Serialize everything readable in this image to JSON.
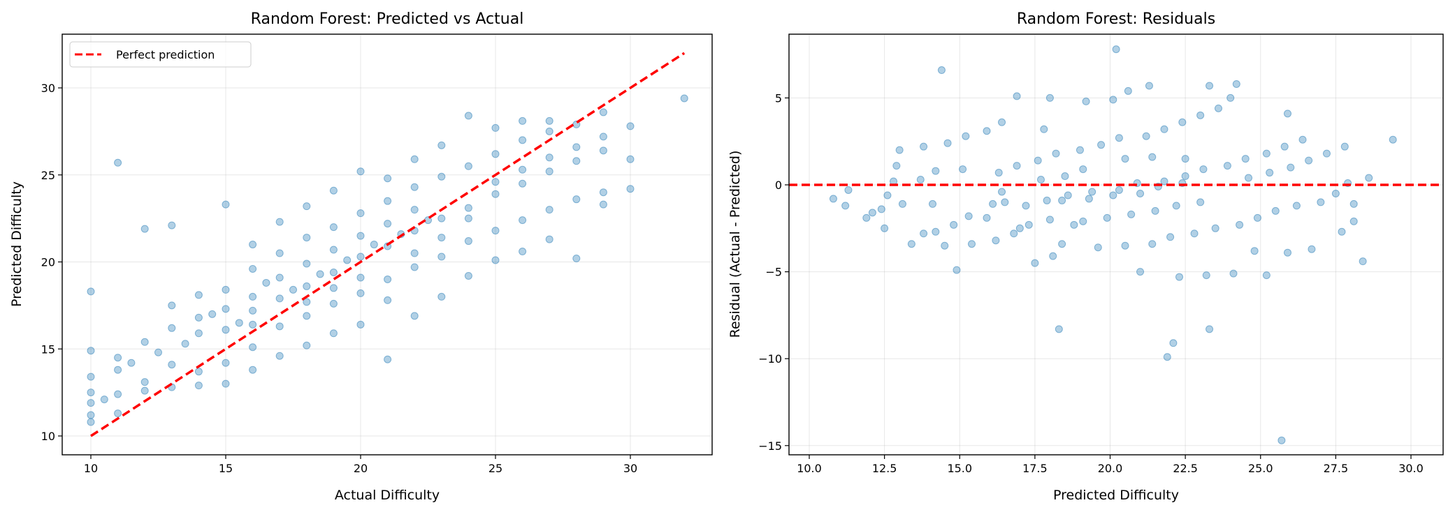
{
  "chart_data": [
    {
      "type": "scatter",
      "title": "Random Forest: Predicted vs Actual",
      "xlabel": "Actual Difficulty",
      "ylabel": "Predicted Difficulty",
      "xlim": [
        9,
        33
      ],
      "ylim": [
        9,
        33
      ],
      "xticks": [
        10,
        15,
        20,
        25,
        30
      ],
      "yticks": [
        10,
        15,
        20,
        25,
        30
      ],
      "xtick_labels": [
        "10",
        "15",
        "20",
        "25",
        "30"
      ],
      "ytick_labels": [
        "10",
        "15",
        "20",
        "25",
        "30"
      ],
      "grid": true,
      "legend": {
        "position": "top-left",
        "entries": [
          "Perfect prediction"
        ]
      },
      "reference_line": {
        "label": "Perfect prediction",
        "from": [
          10,
          10
        ],
        "to": [
          32,
          32
        ],
        "style": "dashed",
        "color": "#ff0000"
      },
      "point_color": "#1f77b4",
      "points_actual_predicted": [
        [
          10,
          11.2
        ],
        [
          10,
          12.5
        ],
        [
          10,
          10.8
        ],
        [
          10,
          13.4
        ],
        [
          10,
          14.9
        ],
        [
          10,
          18.3
        ],
        [
          10,
          11.9
        ],
        [
          10.5,
          12.1
        ],
        [
          11,
          13.8
        ],
        [
          11,
          12.4
        ],
        [
          11,
          25.7
        ],
        [
          11,
          14.5
        ],
        [
          11,
          11.3
        ],
        [
          11.5,
          14.2
        ],
        [
          12,
          13.1
        ],
        [
          12,
          15.4
        ],
        [
          12,
          21.9
        ],
        [
          12,
          12.6
        ],
        [
          12.5,
          14.8
        ],
        [
          13,
          14.1
        ],
        [
          13,
          16.2
        ],
        [
          13,
          12.8
        ],
        [
          13,
          22.1
        ],
        [
          13,
          17.5
        ],
        [
          13.5,
          15.3
        ],
        [
          14,
          15.9
        ],
        [
          14,
          13.7
        ],
        [
          14,
          18.1
        ],
        [
          14,
          16.8
        ],
        [
          14,
          12.9
        ],
        [
          14.5,
          17.0
        ],
        [
          15,
          16.1
        ],
        [
          15,
          14.2
        ],
        [
          15,
          18.4
        ],
        [
          15,
          23.3
        ],
        [
          15,
          13.0
        ],
        [
          15,
          17.3
        ],
        [
          15.5,
          16.5
        ],
        [
          16,
          17.2
        ],
        [
          16,
          15.1
        ],
        [
          16,
          19.6
        ],
        [
          16,
          21.0
        ],
        [
          16,
          13.8
        ],
        [
          16,
          18.0
        ],
        [
          16,
          16.4
        ],
        [
          16.5,
          18.8
        ],
        [
          17,
          17.9
        ],
        [
          17,
          16.3
        ],
        [
          17,
          20.5
        ],
        [
          17,
          22.3
        ],
        [
          17,
          14.6
        ],
        [
          17,
          19.1
        ],
        [
          17.5,
          18.4
        ],
        [
          18,
          18.6
        ],
        [
          18,
          16.9
        ],
        [
          18,
          21.4
        ],
        [
          18,
          23.2
        ],
        [
          18,
          15.2
        ],
        [
          18,
          19.9
        ],
        [
          18,
          17.7
        ],
        [
          18.5,
          19.3
        ],
        [
          19,
          19.4
        ],
        [
          19,
          17.6
        ],
        [
          19,
          22.0
        ],
        [
          19,
          24.1
        ],
        [
          19,
          15.9
        ],
        [
          19,
          20.7
        ],
        [
          19,
          18.5
        ],
        [
          19.5,
          20.1
        ],
        [
          20,
          20.3
        ],
        [
          20,
          18.2
        ],
        [
          20,
          22.8
        ],
        [
          20,
          25.2
        ],
        [
          20,
          16.4
        ],
        [
          20,
          21.5
        ],
        [
          20,
          19.1
        ],
        [
          20.5,
          21.0
        ],
        [
          21,
          20.9
        ],
        [
          21,
          19.0
        ],
        [
          21,
          23.5
        ],
        [
          21,
          24.8
        ],
        [
          21,
          14.4
        ],
        [
          21,
          22.2
        ],
        [
          21,
          17.8
        ],
        [
          21.5,
          21.6
        ],
        [
          22,
          21.8
        ],
        [
          22,
          19.7
        ],
        [
          22,
          24.3
        ],
        [
          22,
          25.9
        ],
        [
          22,
          16.9
        ],
        [
          22,
          23.0
        ],
        [
          22,
          20.5
        ],
        [
          22.5,
          22.4
        ],
        [
          23,
          22.5
        ],
        [
          23,
          20.3
        ],
        [
          23,
          24.9
        ],
        [
          23,
          26.7
        ],
        [
          23,
          18.0
        ],
        [
          23,
          21.4
        ],
        [
          24,
          23.1
        ],
        [
          24,
          21.2
        ],
        [
          24,
          25.5
        ],
        [
          24,
          28.4
        ],
        [
          24,
          19.2
        ],
        [
          24,
          22.5
        ],
        [
          25,
          23.9
        ],
        [
          25,
          21.8
        ],
        [
          25,
          26.2
        ],
        [
          25,
          27.7
        ],
        [
          25,
          20.1
        ],
        [
          25,
          24.6
        ],
        [
          26,
          24.5
        ],
        [
          26,
          22.4
        ],
        [
          26,
          27.0
        ],
        [
          26,
          28.1
        ],
        [
          26,
          20.6
        ],
        [
          26,
          25.3
        ],
        [
          27,
          25.2
        ],
        [
          27,
          23.0
        ],
        [
          27,
          27.5
        ],
        [
          27,
          28.1
        ],
        [
          27,
          21.3
        ],
        [
          27,
          26.0
        ],
        [
          28,
          25.8
        ],
        [
          28,
          23.6
        ],
        [
          28,
          27.9
        ],
        [
          28,
          20.2
        ],
        [
          28,
          26.6
        ],
        [
          29,
          26.4
        ],
        [
          29,
          24.0
        ],
        [
          29,
          28.6
        ],
        [
          29,
          23.3
        ],
        [
          29,
          27.2
        ],
        [
          30,
          25.9
        ],
        [
          30,
          27.8
        ],
        [
          30,
          24.2
        ],
        [
          32,
          29.4
        ]
      ]
    },
    {
      "type": "scatter",
      "title": "Random Forest: Residuals",
      "xlabel": "Predicted Difficulty",
      "ylabel": "Residual (Actual - Predicted)",
      "xlim": [
        9.5,
        30.3
      ],
      "ylim": [
        -16,
        8.5
      ],
      "xticks": [
        10,
        12.5,
        15,
        17.5,
        20,
        22.5,
        25,
        27.5,
        30
      ],
      "yticks": [
        -15,
        -10,
        -5,
        0,
        5
      ],
      "xtick_labels": [
        "10.0",
        "12.5",
        "15.0",
        "17.5",
        "20.0",
        "22.5",
        "25.0",
        "27.5",
        "30.0"
      ],
      "ytick_labels": [
        "−15",
        "−10",
        "−5",
        "0",
        "5"
      ],
      "grid": true,
      "reference_line": {
        "y": 0,
        "style": "dashed",
        "color": "#ff0000"
      },
      "point_color": "#1f77b4",
      "points_source": "residual = actual - predicted, plotted against predicted, from chart 1 points"
    }
  ]
}
